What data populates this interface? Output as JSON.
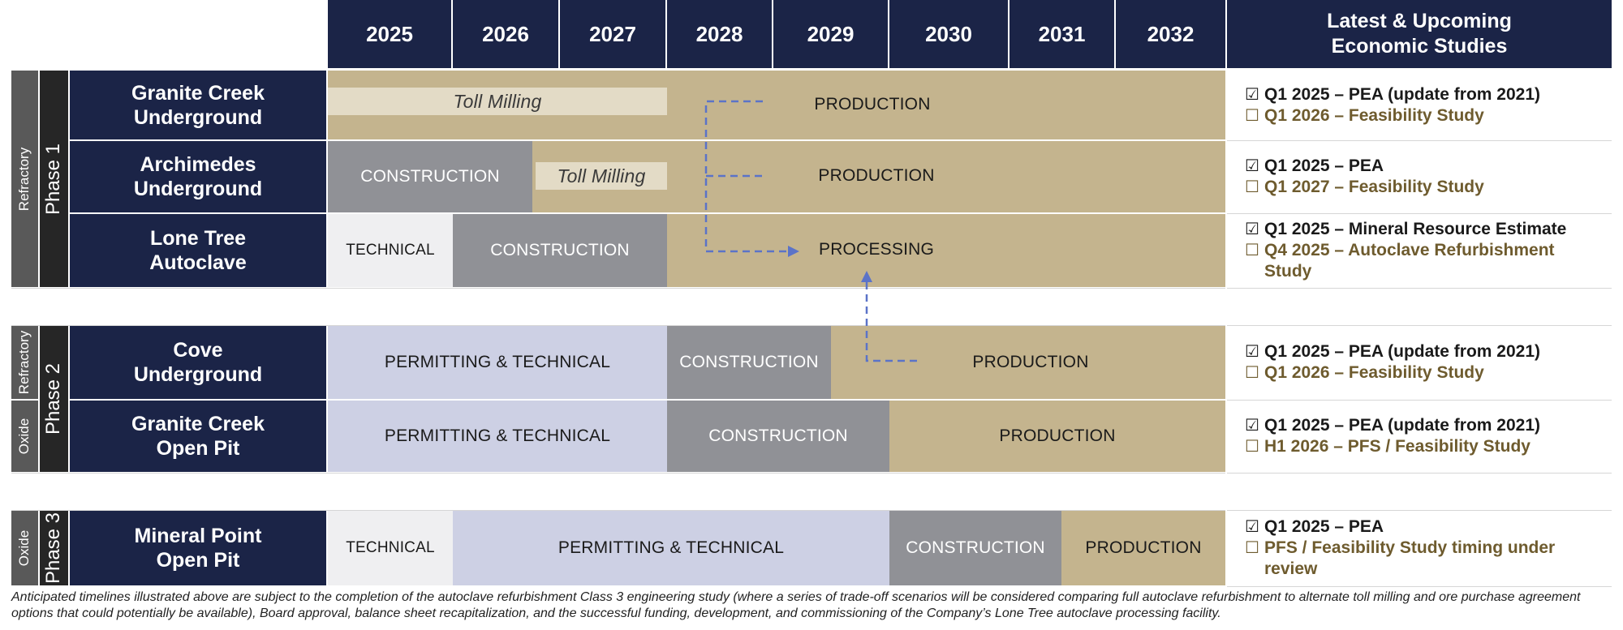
{
  "years": [
    "2025",
    "2026",
    "2027",
    "2028",
    "2029",
    "2030",
    "2031",
    "2032"
  ],
  "studies_header": [
    "Latest & Upcoming",
    "Economic Studies"
  ],
  "tags": {
    "refractory1": "Refractory",
    "refractory2": "Refractory",
    "oxide2": "Oxide",
    "oxide3": "Oxide"
  },
  "phases": {
    "p1": "Phase 1",
    "p2": "Phase 2",
    "p3": "Phase 3"
  },
  "projects": {
    "gc_ug": {
      "line1": "Granite Creek",
      "line2": "Underground",
      "segments": {
        "toll": "Toll Milling",
        "production": "PRODUCTION"
      },
      "studies": [
        {
          "check": "☑",
          "text": "Q1 2025 – PEA (update from 2021)"
        },
        {
          "check": "☐",
          "text": "Q1 2026 – Feasibility Study"
        }
      ]
    },
    "arch_ug": {
      "line1": "Archimedes",
      "line2": "Underground",
      "segments": {
        "construction": "CONSTRUCTION",
        "toll": "Toll Milling",
        "production": "PRODUCTION"
      },
      "studies": [
        {
          "check": "☑",
          "text": "Q1 2025 – PEA"
        },
        {
          "check": "☐",
          "text": "Q1 2027 – Feasibility Study"
        }
      ]
    },
    "lt_ac": {
      "line1": "Lone Tree",
      "line2": "Autoclave",
      "segments": {
        "technical": "TECHNICAL",
        "construction": "CONSTRUCTION",
        "processing": "PROCESSING"
      },
      "studies": [
        {
          "check": "☑",
          "text": "Q1 2025 – Mineral Resource Estimate"
        },
        {
          "check": "☐",
          "text": "Q4 2025 – Autoclave Refurbishment Study"
        }
      ]
    },
    "cove_ug": {
      "line1": "Cove",
      "line2": "Underground",
      "segments": {
        "permitting": "PERMITTING & TECHNICAL",
        "construction": "CONSTRUCTION",
        "production": "PRODUCTION"
      },
      "studies": [
        {
          "check": "☑",
          "text": "Q1 2025 – PEA (update from 2021)"
        },
        {
          "check": "☐",
          "text": "Q1 2026 – Feasibility Study"
        }
      ]
    },
    "gc_op": {
      "line1": "Granite Creek",
      "line2": "Open Pit",
      "segments": {
        "permitting": "PERMITTING & TECHNICAL",
        "construction": "CONSTRUCTION",
        "production": "PRODUCTION"
      },
      "studies": [
        {
          "check": "☑",
          "text": "Q1 2025 – PEA (update from 2021)"
        },
        {
          "check": "☐",
          "text": "H1 2026 – PFS / Feasibility Study"
        }
      ]
    },
    "mp_op": {
      "line1": "Mineral Point",
      "line2": "Open Pit",
      "segments": {
        "technical": "TECHNICAL",
        "permitting": "PERMITTING & TECHNICAL",
        "construction": "CONSTRUCTION",
        "production": "PRODUCTION"
      },
      "studies": [
        {
          "check": "☑",
          "text": "Q1 2025 – PEA"
        },
        {
          "check": "☐",
          "text": "PFS / Feasibility Study timing under review"
        }
      ]
    }
  },
  "colors": {
    "navy": "#1b2447",
    "gold": "#c4b48e",
    "grey": "#909196",
    "lavender": "#cdd0e4",
    "arrow": "#5b73c8"
  },
  "footnote": "Anticipated timelines illustrated above are subject to the completion of the autoclave refurbishment Class 3 engineering study (where a series of trade-off scenarios will be considered comparing full autoclave refurbishment to alternate toll milling and ore purchase agreement options that could potentially be available), Board approval, balance sheet recapitalization, and the successful funding, development, and commissioning of the Company’s Lone Tree autoclave processing facility."
}
